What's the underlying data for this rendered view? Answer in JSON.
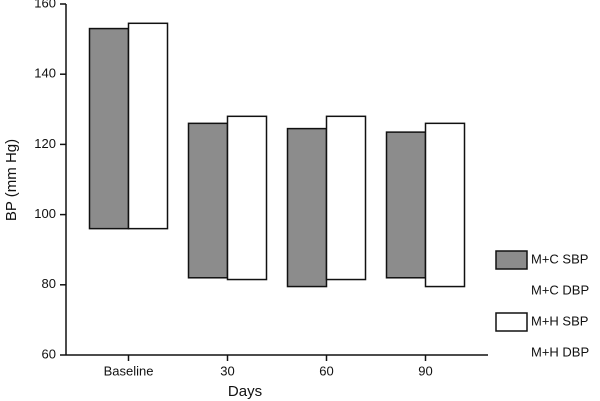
{
  "chart_data": {
    "type": "floating-bar",
    "x_label": "Days",
    "y_label": "BP (mm Hg)",
    "categories": [
      "Baseline",
      "30",
      "60",
      "90"
    ],
    "series": [
      {
        "name": "M+C SBP",
        "color": "#8c8c8c",
        "values": [
          153,
          126,
          124.5,
          123.5
        ]
      },
      {
        "name": "M+C DBP",
        "values": [
          96,
          82,
          79.5,
          82
        ]
      },
      {
        "name": "M+H SBP",
        "color": "#ffffff",
        "values": [
          154.5,
          128,
          128,
          126
        ]
      },
      {
        "name": "M+H DBP",
        "values": [
          96,
          81.5,
          81.5,
          79.5
        ]
      }
    ],
    "ylim": [
      60,
      160
    ],
    "yticks": [
      60,
      80,
      100,
      120,
      140,
      160
    ]
  }
}
